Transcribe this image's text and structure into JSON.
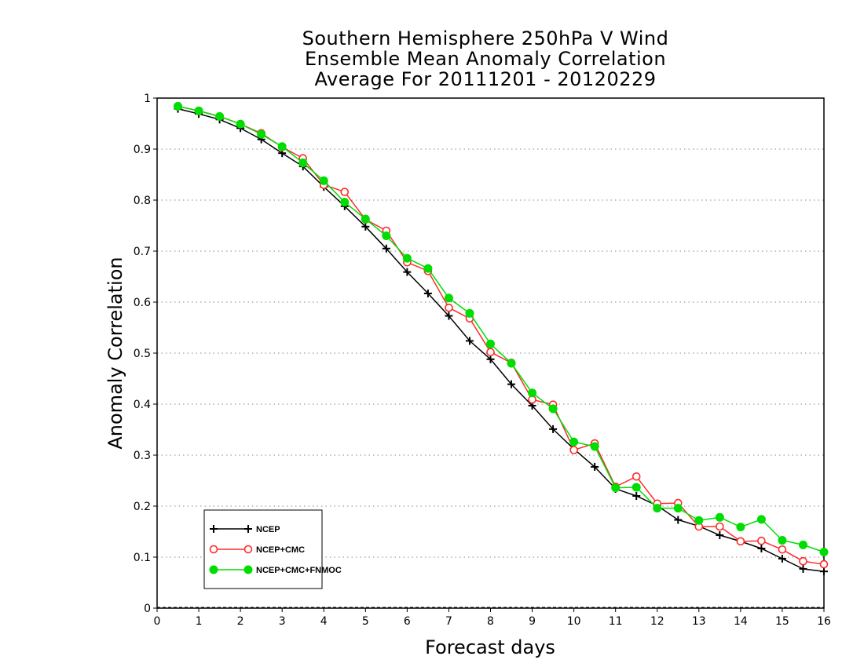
{
  "chart_data": {
    "type": "line",
    "title_lines": [
      "Southern Hemisphere 250hPa V Wind",
      "Ensemble Mean Anomaly Correlation",
      "Average For 20111201 - 20120229"
    ],
    "xlabel": "Forecast days",
    "ylabel": "Anomaly Correlation",
    "xlim": [
      0,
      16
    ],
    "ylim": [
      0,
      1
    ],
    "x_ticks": [
      "0",
      "1",
      "2",
      "3",
      "4",
      "5",
      "6",
      "7",
      "8",
      "9",
      "10",
      "11",
      "12",
      "13",
      "14",
      "15",
      "16"
    ],
    "y_ticks": [
      "0",
      "0.1",
      "0.2",
      "0.3",
      "0.4",
      "0.5",
      "0.6",
      "0.7",
      "0.8",
      "0.9",
      "1"
    ],
    "grid": "horizontal dotted",
    "legend_position": "lower-left",
    "x": [
      0.5,
      1,
      1.5,
      2,
      2.5,
      3,
      3.5,
      4,
      4.5,
      5,
      5.5,
      6,
      6.5,
      7,
      7.5,
      8,
      8.5,
      9,
      9.5,
      10,
      10.5,
      11,
      11.5,
      12,
      12.5,
      13,
      13.5,
      14,
      14.5,
      15,
      15.5,
      16
    ],
    "series": [
      {
        "name": "NCEP",
        "color": "#000000",
        "marker": "plus",
        "values": [
          0.979,
          0.969,
          0.958,
          0.941,
          0.919,
          0.892,
          0.866,
          0.826,
          0.788,
          0.748,
          0.705,
          0.659,
          0.617,
          0.573,
          0.524,
          0.488,
          0.439,
          0.397,
          0.351,
          0.312,
          0.277,
          0.234,
          0.22,
          0.201,
          0.173,
          0.161,
          0.143,
          0.131,
          0.117,
          0.097,
          0.077,
          0.072
        ]
      },
      {
        "name": "NCEP+CMC",
        "color": "#ff2a2a",
        "marker": "open-circle",
        "values": [
          0.984,
          0.975,
          0.964,
          0.949,
          0.931,
          0.904,
          0.882,
          0.83,
          0.816,
          0.762,
          0.74,
          0.678,
          0.661,
          0.589,
          0.568,
          0.502,
          0.481,
          0.409,
          0.399,
          0.31,
          0.323,
          0.238,
          0.258,
          0.205,
          0.206,
          0.16,
          0.16,
          0.131,
          0.132,
          0.115,
          0.092,
          0.086
        ]
      },
      {
        "name": "NCEP+CMC+FNMOC",
        "color": "#00dd00",
        "marker": "filled-circle",
        "values": [
          0.984,
          0.975,
          0.964,
          0.949,
          0.929,
          0.905,
          0.873,
          0.838,
          0.796,
          0.763,
          0.73,
          0.686,
          0.666,
          0.608,
          0.578,
          0.518,
          0.48,
          0.422,
          0.391,
          0.326,
          0.317,
          0.236,
          0.237,
          0.196,
          0.196,
          0.172,
          0.178,
          0.159,
          0.174,
          0.133,
          0.124,
          0.11
        ]
      }
    ]
  }
}
